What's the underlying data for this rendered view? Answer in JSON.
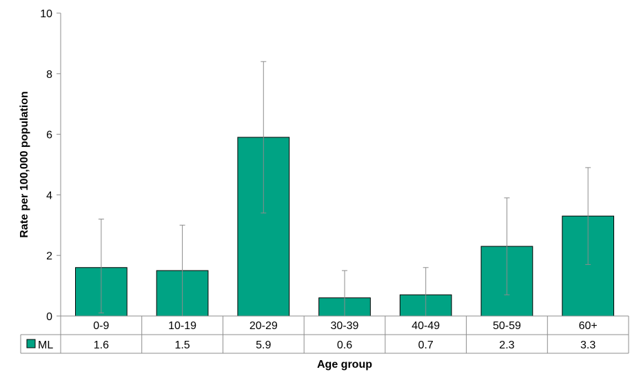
{
  "chart_data": {
    "type": "bar",
    "title": "",
    "xlabel": "Age group",
    "ylabel": "Rate per 100,000 population",
    "ylim": [
      0,
      10
    ],
    "yticks": [
      "0",
      "2",
      "4",
      "6",
      "8",
      "10"
    ],
    "categories": [
      "0-9",
      "10-19",
      "20-29",
      "30-39",
      "40-49",
      "50-59",
      "60+"
    ],
    "series": [
      {
        "name": "ML",
        "color": "#00A384",
        "values": [
          1.6,
          1.5,
          5.9,
          0.6,
          0.7,
          2.3,
          3.3
        ],
        "value_labels": [
          "1.6",
          "1.5",
          "5.9",
          "0.6",
          "0.7",
          "2.3",
          "3.3"
        ],
        "error_low": [
          0.1,
          0.0,
          3.4,
          0.0,
          0.0,
          0.7,
          1.7
        ],
        "error_high": [
          3.2,
          3.0,
          8.4,
          1.5,
          1.6,
          3.9,
          4.9
        ]
      }
    ],
    "grid": false,
    "legend": "data-table-left",
    "data_table": true
  }
}
